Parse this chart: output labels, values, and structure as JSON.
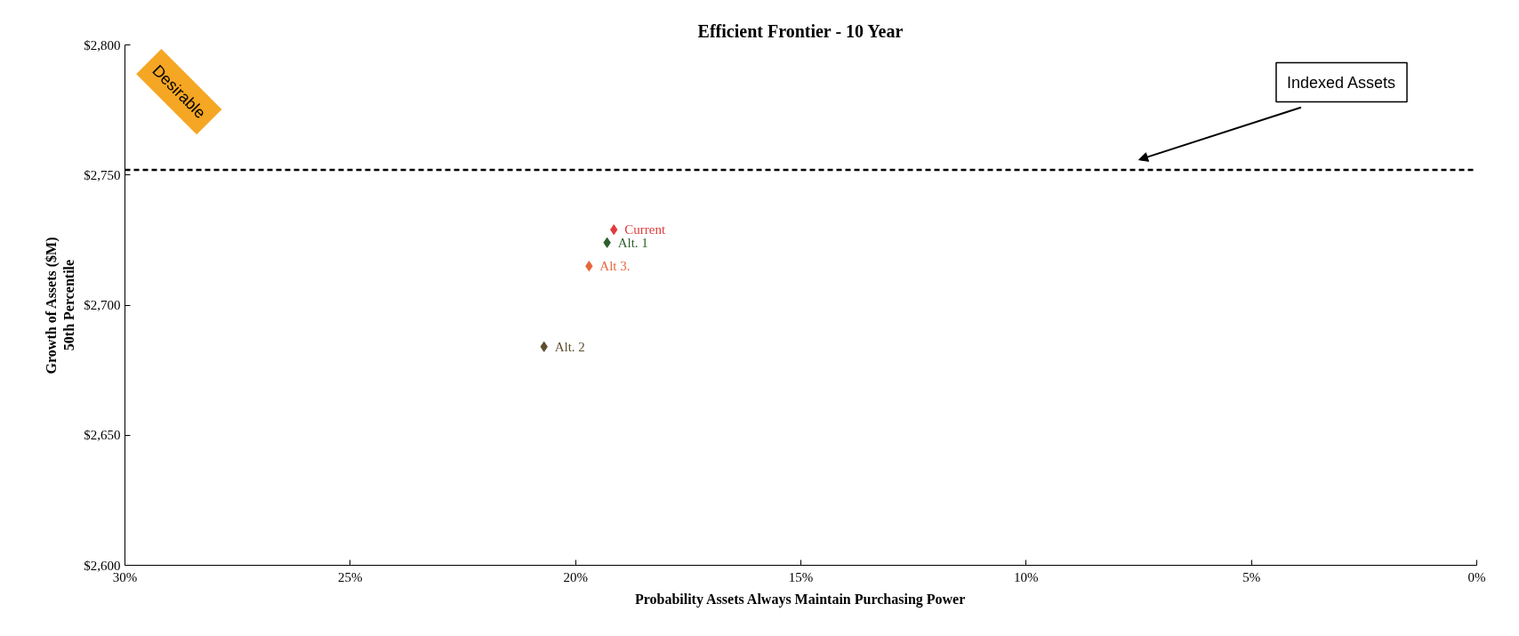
{
  "chart_data": {
    "type": "scatter",
    "title": "Efficient Frontier - 10 Year",
    "xlabel": "Probability Assets Always Maintain Purchasing Power",
    "ylabel": "Growth of Assets ($M)\n50th Percentile",
    "xlim": [
      30,
      0
    ],
    "xticks": [
      {
        "value": 30,
        "label": "30%"
      },
      {
        "value": 25,
        "label": "25%"
      },
      {
        "value": 20,
        "label": "20%"
      },
      {
        "value": 15,
        "label": "15%"
      },
      {
        "value": 10,
        "label": "10%"
      },
      {
        "value": 5,
        "label": "5%"
      },
      {
        "value": 0,
        "label": "0%"
      }
    ],
    "ylim": [
      2600,
      2800
    ],
    "yticks": [
      {
        "value": 2600,
        "label": "$2,600"
      },
      {
        "value": 2650,
        "label": "$2,650"
      },
      {
        "value": 2700,
        "label": "$2,700"
      },
      {
        "value": 2750,
        "label": "$2,750"
      },
      {
        "value": 2800,
        "label": "$2,800"
      }
    ],
    "series": [
      {
        "name": "Current",
        "color": "#e03c3c",
        "x": [
          19.15
        ],
        "values": [
          2729
        ]
      },
      {
        "name": "Alt. 1",
        "color": "#2e5e2e",
        "x": [
          19.3
        ],
        "values": [
          2724
        ]
      },
      {
        "name": "Alt 3.",
        "color": "#e8663c",
        "x": [
          19.7
        ],
        "values": [
          2715
        ]
      },
      {
        "name": "Alt. 2",
        "color": "#5e4e2e",
        "x": [
          20.7
        ],
        "values": [
          2684
        ]
      }
    ],
    "ref_lines": [
      {
        "axis": "y",
        "value": 2752,
        "color": "#000000",
        "line_style": "dashed"
      }
    ],
    "annotations": [
      "Desirable",
      "Indexed Assets"
    ],
    "marker": "diamond",
    "grid": false,
    "legend": false
  }
}
